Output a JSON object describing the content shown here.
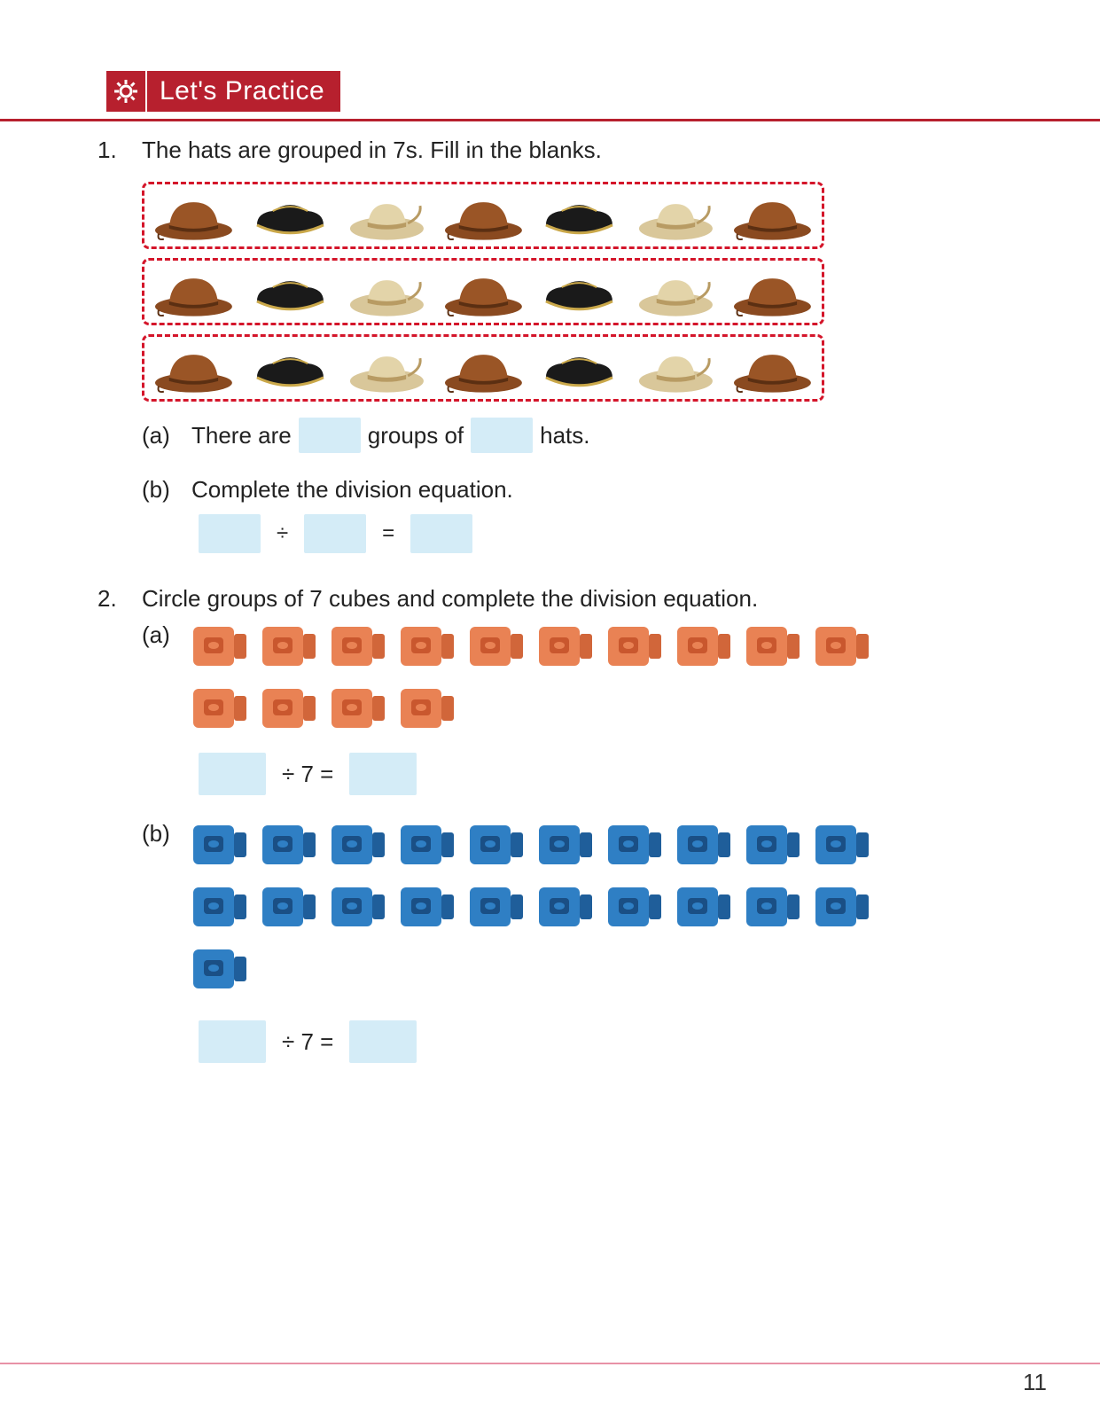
{
  "header": {
    "title": "Let's Practice"
  },
  "colors": {
    "accent": "#b7202e",
    "blank_bg": "#d4ecf7",
    "dash_border": "#d4152a",
    "footer_line": "#d94a6a"
  },
  "q1": {
    "number": "1.",
    "prompt": "The hats are grouped in 7s. Fill in the blanks.",
    "hat_groups": {
      "rows": 3,
      "hats_per_row": 7,
      "hat_sequence": [
        "cowboy",
        "tricorn",
        "safari",
        "cowboy",
        "tricorn",
        "safari",
        "cowboy"
      ],
      "hat_colors": {
        "cowboy": {
          "fill": "#8a4a20",
          "band": "#5b2f12"
        },
        "tricorn": {
          "fill": "#1a1a1a",
          "trim": "#caa84a"
        },
        "safari": {
          "fill": "#d9c79a",
          "band": "#b89b63"
        }
      }
    },
    "a": {
      "label": "(a)",
      "text_parts": [
        "There are",
        "groups of",
        "hats."
      ]
    },
    "b": {
      "label": "(b)",
      "text": "Complete the division equation.",
      "equation": {
        "op1": "÷",
        "op2": "="
      }
    }
  },
  "q2": {
    "number": "2.",
    "prompt": "Circle groups of 7 cubes and complete the division equation.",
    "a": {
      "label": "(a)",
      "cube_count": 14,
      "per_row": 10,
      "cube_color": {
        "fill": "#e98254",
        "shade": "#d1663a",
        "inner": "#c9572e"
      },
      "equation": {
        "mid": "÷ 7 ="
      }
    },
    "b": {
      "label": "(b)",
      "cube_count": 21,
      "per_row": 10,
      "cube_color": {
        "fill": "#2f7fc4",
        "shade": "#1f5e9a",
        "inner": "#1a4f85"
      },
      "equation": {
        "mid": "÷ 7 ="
      }
    }
  },
  "page_number": "11"
}
